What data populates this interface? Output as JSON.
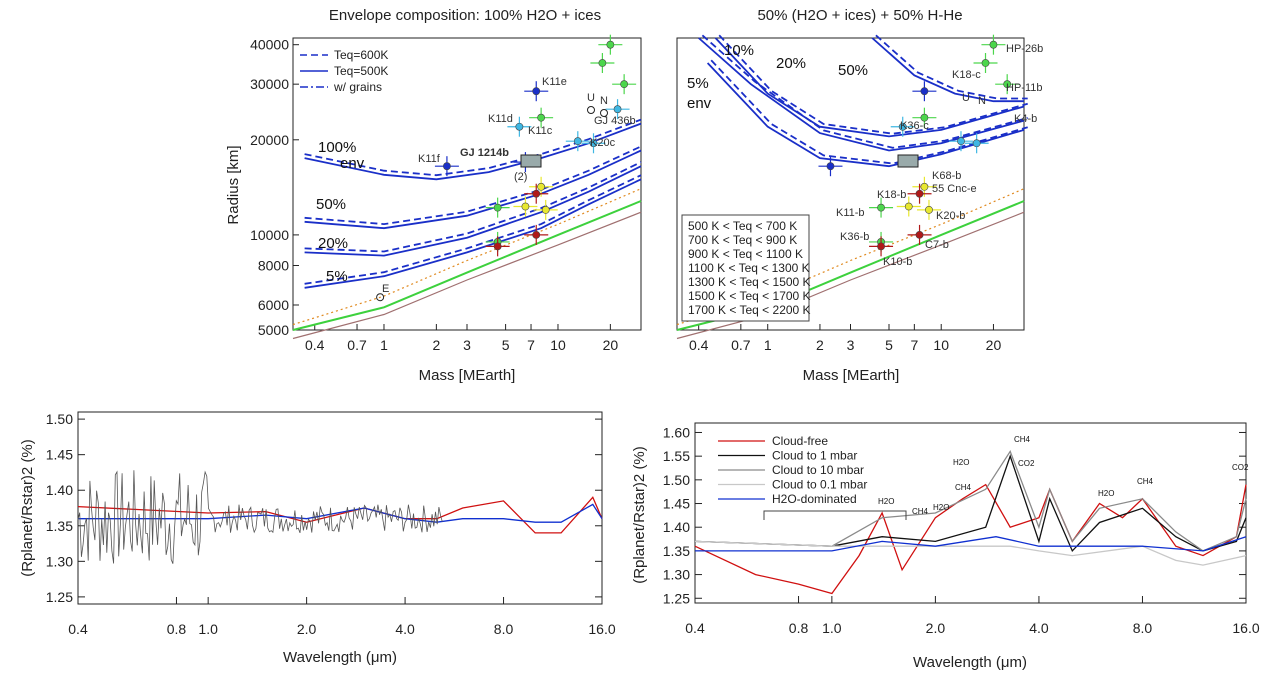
{
  "chart_data": [
    {
      "type": "scatter",
      "title": "Envelope composition: 100% H2O + ices",
      "xlabel": "Mass [MEarth]",
      "ylabel": "Radius [km]",
      "xscale": "log",
      "yscale": "log",
      "xlim": [
        0.3,
        30
      ],
      "ylim": [
        5000,
        42000
      ],
      "xticks": [
        "0.4",
        "0.7",
        "1",
        "2",
        "3",
        "5",
        "7",
        "10",
        "20"
      ],
      "yticks": [
        "40000",
        "30000",
        "20000",
        "10000",
        "8000",
        "6000",
        "5000"
      ],
      "legend": [
        "Teq=600K",
        "Teq=500K",
        "w/ grains"
      ],
      "env_labels": [
        "100%",
        "env",
        "50%",
        "20%",
        "5%"
      ],
      "planet_labels": [
        "K11e",
        "K11d",
        "K11c",
        "K20c",
        "GJ 436b",
        "K11f",
        "GJ 1214b",
        "U",
        "N",
        "E",
        "(2)"
      ],
      "points": [
        {
          "label": "K11e",
          "x": 7.5,
          "y": 28500,
          "color": "#1a2fc8"
        },
        {
          "label": "K11d",
          "x": 6.0,
          "y": 22000,
          "color": "#3fb7e3"
        },
        {
          "label": "K11c",
          "x": 13,
          "y": 19800,
          "color": "#3fb7e3"
        },
        {
          "label": "K20c",
          "x": 16,
          "y": 19500,
          "color": "#3fb7e3"
        },
        {
          "label": "GJ 436b",
          "x": 22,
          "y": 25000,
          "color": "#3fb7e3"
        },
        {
          "label": "K11f",
          "x": 2.3,
          "y": 16500,
          "color": "#1a2fc8"
        },
        {
          "label": "",
          "x": 6.5,
          "y": 17000,
          "color": "#1a2fc8"
        },
        {
          "label": "",
          "x": 20,
          "y": 40000,
          "color": "#4cd64c"
        },
        {
          "label": "",
          "x": 18,
          "y": 35000,
          "color": "#4cd64c"
        },
        {
          "label": "",
          "x": 24,
          "y": 30000,
          "color": "#4cd64c"
        },
        {
          "label": "",
          "x": 8,
          "y": 23500,
          "color": "#4cd64c"
        },
        {
          "label": "",
          "x": 8,
          "y": 14200,
          "color": "#e8e830"
        },
        {
          "label": "",
          "x": 7.5,
          "y": 13500,
          "color": "#b01919"
        },
        {
          "label": "",
          "x": 4.5,
          "y": 12200,
          "color": "#4cd64c"
        },
        {
          "label": "",
          "x": 6.5,
          "y": 12300,
          "color": "#e8e830"
        },
        {
          "label": "",
          "x": 8.5,
          "y": 12000,
          "color": "#e8e830"
        },
        {
          "label": "",
          "x": 7.5,
          "y": 10000,
          "color": "#b01919"
        },
        {
          "label": "",
          "x": 4.5,
          "y": 9500,
          "color": "#4cd64c"
        },
        {
          "label": "",
          "x": 4.5,
          "y": 9200,
          "color": "#b01919"
        }
      ]
    },
    {
      "type": "scatter",
      "title": "50% (H2O + ices) + 50% H-He",
      "xlabel": "Mass [MEarth]",
      "xscale": "log",
      "yscale": "log",
      "xlim": [
        0.3,
        30
      ],
      "ylim": [
        5000,
        42000
      ],
      "xticks": [
        "0.4",
        "0.7",
        "1",
        "2",
        "3",
        "5",
        "7",
        "10",
        "20"
      ],
      "env_labels": [
        "10%",
        "20%",
        "50%",
        "5%",
        "env"
      ],
      "planet_labels": [
        "HP-26b",
        "K18-c",
        "HP-11b",
        "U",
        "N",
        "K4-b",
        "K36-c",
        "K68-b",
        "55 Cnc-e",
        "K18-b",
        "K11-b",
        "K20-b",
        "K36-b",
        "C7-b",
        "K10-b"
      ],
      "legend": [
        "500 K < Teq < 700 K",
        "700 K < Teq < 900 K",
        "900 K < Teq < 1100 K",
        "1100 K < Teq < 1300 K",
        "1300 K < Teq < 1500 K",
        "1500 K < Teq < 1700 K",
        "1700 K < Teq < 2200 K"
      ],
      "legend_colors": [
        "#1a2fc8",
        "#3fb7e3",
        "#34c234",
        "#c9b020",
        "#e07070",
        "#c020c0",
        "#9a1a1a"
      ]
    },
    {
      "type": "line",
      "xlabel": "Wavelength (μm)",
      "ylabel": "(Rplanet/Rstar)2 (%)",
      "xscale": "log",
      "xlim": [
        0.4,
        16
      ],
      "ylim": [
        1.24,
        1.51
      ],
      "xticks": [
        "0.4",
        "0.8",
        "1.0",
        "2.0",
        "4.0",
        "8.0",
        "16.0"
      ],
      "yticks": [
        "1.50",
        "1.45",
        "1.40",
        "1.35",
        "1.30",
        "1.25"
      ],
      "series": [
        {
          "name": "",
          "color": "#d01010",
          "x": [
            0.4,
            1.0,
            1.5,
            2.0,
            3.0,
            4.0,
            5.0,
            6.0,
            8.0,
            10,
            12,
            15,
            16
          ],
          "values": [
            1.377,
            1.368,
            1.37,
            1.355,
            1.375,
            1.36,
            1.36,
            1.375,
            1.385,
            1.34,
            1.34,
            1.39,
            1.36
          ]
        },
        {
          "name": "",
          "color": "#1030d0",
          "x": [
            0.4,
            1.0,
            1.5,
            2.0,
            3.0,
            4.0,
            5.0,
            6.0,
            8.0,
            10,
            12,
            15,
            16
          ],
          "values": [
            1.36,
            1.36,
            1.365,
            1.36,
            1.375,
            1.36,
            1.355,
            1.36,
            1.36,
            1.355,
            1.355,
            1.38,
            1.36
          ]
        }
      ]
    },
    {
      "type": "line",
      "xlabel": "Wavelength (μm)",
      "ylabel": "(Rplanet/Rstar)2 (%)",
      "xscale": "log",
      "xlim": [
        0.4,
        16
      ],
      "ylim": [
        1.24,
        1.62
      ],
      "xticks": [
        "0.4",
        "0.8",
        "1.0",
        "2.0",
        "4.0",
        "8.0",
        "16.0"
      ],
      "yticks": [
        "1.60",
        "1.55",
        "1.50",
        "1.45",
        "1.40",
        "1.35",
        "1.30",
        "1.25"
      ],
      "molecule_labels": [
        "H2O",
        "CH4",
        "H2O",
        "CH4",
        "H2O",
        "CH4",
        "CO2",
        "H2O",
        "CH4",
        "CO2"
      ],
      "series": [
        {
          "name": "Cloud-free",
          "color": "#d01010",
          "x": [
            0.4,
            0.6,
            0.8,
            1.0,
            1.2,
            1.4,
            1.6,
            2.0,
            2.4,
            2.8,
            3.3,
            4.0,
            4.3,
            5.0,
            6.0,
            7.0,
            8.0,
            10,
            12,
            15,
            16
          ],
          "values": [
            1.36,
            1.3,
            1.28,
            1.26,
            1.34,
            1.43,
            1.31,
            1.42,
            1.46,
            1.49,
            1.4,
            1.42,
            1.48,
            1.37,
            1.45,
            1.42,
            1.46,
            1.36,
            1.34,
            1.38,
            1.49
          ]
        },
        {
          "name": "Cloud to 1 mbar",
          "color": "#111111",
          "x": [
            0.4,
            1.0,
            1.4,
            2.0,
            2.8,
            3.3,
            4.0,
            4.3,
            5.0,
            6.0,
            8.0,
            10,
            12,
            15,
            16
          ],
          "values": [
            1.37,
            1.36,
            1.38,
            1.37,
            1.4,
            1.55,
            1.37,
            1.46,
            1.35,
            1.41,
            1.44,
            1.38,
            1.35,
            1.37,
            1.42
          ]
        },
        {
          "name": "Cloud to 10 mbar",
          "color": "#8a8a8a",
          "x": [
            0.4,
            1.0,
            1.4,
            2.0,
            2.8,
            3.3,
            4.0,
            4.3,
            5.0,
            6.0,
            8.0,
            10,
            12,
            15,
            16
          ],
          "values": [
            1.37,
            1.36,
            1.42,
            1.43,
            1.48,
            1.56,
            1.4,
            1.48,
            1.37,
            1.44,
            1.46,
            1.39,
            1.35,
            1.38,
            1.46
          ]
        },
        {
          "name": "Cloud to 0.1 mbar",
          "color": "#c8c8c8",
          "x": [
            0.4,
            1.0,
            2.0,
            3.3,
            4.0,
            5.0,
            8.0,
            10,
            12,
            16
          ],
          "values": [
            1.37,
            1.36,
            1.36,
            1.36,
            1.35,
            1.34,
            1.36,
            1.33,
            1.32,
            1.34
          ]
        },
        {
          "name": "H2O-dominated",
          "color": "#1030d0",
          "x": [
            0.4,
            1.0,
            1.4,
            2.0,
            3.0,
            4.0,
            5.0,
            8.0,
            12,
            16
          ],
          "values": [
            1.35,
            1.35,
            1.37,
            1.36,
            1.38,
            1.36,
            1.36,
            1.36,
            1.35,
            1.38
          ]
        }
      ]
    }
  ]
}
